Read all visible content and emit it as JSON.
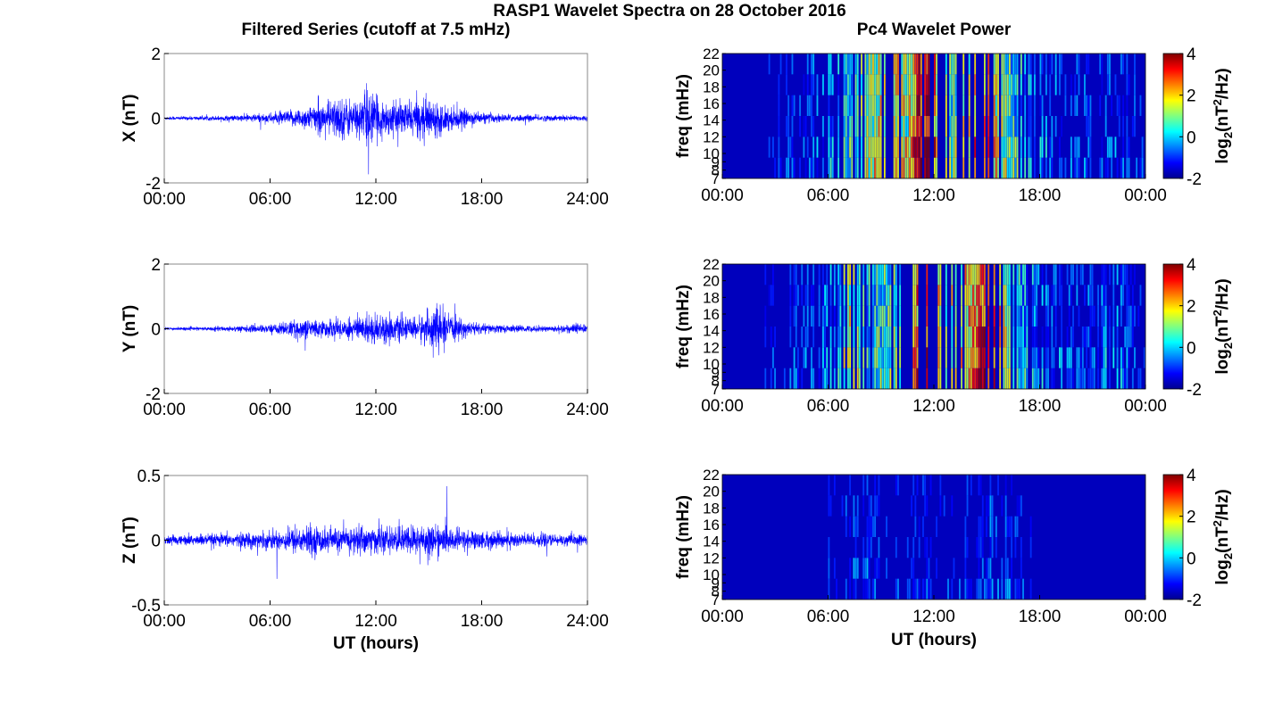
{
  "figure": {
    "title": "RASP1 Wavelet Spectra on 28 October 2016",
    "left_title": "Filtered Series (cutoff at 7.5 mHz)",
    "right_title": "Pc4 Wavelet Power",
    "x_label": "UT (hours)"
  },
  "chart_data": [
    {
      "type": "line",
      "panel": "X",
      "ylabel": "X (nT)",
      "xlabel": "",
      "xlim": [
        0,
        24
      ],
      "ylim": [
        -2,
        2
      ],
      "x_ticks": [
        0,
        6,
        12,
        18,
        24
      ],
      "x_tick_labels": [
        "00:00",
        "06:00",
        "12:00",
        "18:00",
        "24:00"
      ],
      "y_ticks": [
        -2,
        0,
        2
      ],
      "y_tick_labels": [
        "-2",
        "0",
        "2"
      ],
      "color": "#0000ff",
      "envelope_x": [
        0,
        2,
        4,
        6,
        7,
        8,
        9,
        10,
        11,
        11.5,
        12,
        13,
        14,
        15,
        16,
        17,
        18,
        20,
        22,
        24
      ],
      "envelope_amp": [
        0.06,
        0.07,
        0.1,
        0.18,
        0.25,
        0.4,
        0.55,
        0.75,
        0.6,
        1.2,
        0.7,
        0.55,
        0.6,
        0.7,
        0.45,
        0.3,
        0.18,
        0.12,
        0.1,
        0.1
      ]
    },
    {
      "type": "line",
      "panel": "Y",
      "ylabel": "Y (nT)",
      "xlabel": "",
      "xlim": [
        0,
        24
      ],
      "ylim": [
        -2,
        2
      ],
      "x_ticks": [
        0,
        6,
        12,
        18,
        24
      ],
      "x_tick_labels": [
        "00:00",
        "06:00",
        "12:00",
        "18:00",
        "24:00"
      ],
      "y_ticks": [
        -2,
        0,
        2
      ],
      "y_tick_labels": [
        "-2",
        "0",
        "2"
      ],
      "color": "#0000ff",
      "envelope_x": [
        0,
        2,
        4,
        6,
        7,
        8,
        9,
        10,
        11,
        12,
        13,
        14,
        15,
        15.5,
        16,
        17,
        18,
        20,
        22,
        23.5,
        24
      ],
      "envelope_amp": [
        0.05,
        0.06,
        0.1,
        0.15,
        0.25,
        0.35,
        0.3,
        0.35,
        0.45,
        0.55,
        0.45,
        0.35,
        0.6,
        0.9,
        0.5,
        0.3,
        0.18,
        0.12,
        0.1,
        0.2,
        0.1
      ]
    },
    {
      "type": "line",
      "panel": "Z",
      "ylabel": "Z (nT)",
      "xlabel": "UT (hours)",
      "xlim": [
        0,
        24
      ],
      "ylim": [
        -0.5,
        0.5
      ],
      "x_ticks": [
        0,
        6,
        12,
        18,
        24
      ],
      "x_tick_labels": [
        "00:00",
        "06:00",
        "12:00",
        "18:00",
        "24:00"
      ],
      "y_ticks": [
        -0.5,
        0,
        0.5
      ],
      "y_tick_labels": [
        "-0.5",
        "0",
        "0.5"
      ],
      "color": "#0000ff",
      "envelope_x": [
        0,
        2,
        4,
        6,
        7,
        8,
        10,
        11,
        12,
        13,
        14,
        15,
        16,
        18,
        20,
        22,
        24
      ],
      "envelope_amp": [
        0.04,
        0.05,
        0.06,
        0.08,
        0.1,
        0.13,
        0.1,
        0.14,
        0.12,
        0.11,
        0.13,
        0.15,
        0.11,
        0.08,
        0.07,
        0.05,
        0.05
      ]
    },
    {
      "type": "heatmap",
      "panel": "X spectrum",
      "ylabel": "freq (mHz)",
      "xlabel": "",
      "xlim": [
        0,
        24
      ],
      "ylim": [
        7,
        22
      ],
      "x_tick_labels": [
        "00:00",
        "06:00",
        "12:00",
        "18:00",
        "00:00"
      ],
      "y_ticks": [
        7,
        8,
        9,
        10,
        12,
        14,
        16,
        18,
        20,
        22
      ],
      "y_tick_labels": [
        "7",
        "8",
        "9",
        "10",
        "12",
        "14",
        "16",
        "18",
        "20",
        "22"
      ],
      "colorbar_label": "log2(nT^2/Hz)",
      "colorbar_range": [
        -2,
        4
      ],
      "colorbar_ticks": [
        "4",
        "2",
        "0",
        "-2"
      ],
      "activity_x": [
        0,
        3,
        5,
        6.5,
        7.5,
        8.5,
        9.5,
        10.5,
        11.2,
        11.7,
        12.3,
        13,
        14,
        14.8,
        15.5,
        16.5,
        18,
        20,
        22,
        24
      ],
      "activity_level": [
        -2,
        -1.8,
        -1.2,
        -0.4,
        0.4,
        1.2,
        2.2,
        1.2,
        3.3,
        3.7,
        1.6,
        0.6,
        1.6,
        2.8,
        1.7,
        0.3,
        -0.6,
        -1.2,
        -1.2,
        -1.6
      ]
    },
    {
      "type": "heatmap",
      "panel": "Y spectrum",
      "ylabel": "freq (mHz)",
      "xlabel": "",
      "xlim": [
        0,
        24
      ],
      "ylim": [
        7,
        22
      ],
      "x_tick_labels": [
        "00:00",
        "06:00",
        "12:00",
        "18:00",
        "00:00"
      ],
      "y_ticks": [
        7,
        8,
        9,
        10,
        12,
        14,
        16,
        18,
        20,
        22
      ],
      "y_tick_labels": [
        "7",
        "8",
        "9",
        "10",
        "12",
        "14",
        "16",
        "18",
        "20",
        "22"
      ],
      "colorbar_label": "log2(nT^2/Hz)",
      "colorbar_range": [
        -2,
        4
      ],
      "colorbar_ticks": [
        "4",
        "2",
        "0",
        "-2"
      ],
      "activity_x": [
        0,
        3,
        5,
        6.5,
        7.3,
        8.2,
        9.5,
        10.5,
        11.3,
        11.8,
        12.4,
        13.2,
        14,
        14.8,
        15.6,
        16.5,
        18,
        20,
        22.5,
        23.2,
        24
      ],
      "activity_level": [
        -2,
        -1.8,
        -1.2,
        -0.3,
        1.4,
        0.2,
        0.6,
        0.6,
        3.2,
        3.4,
        1.2,
        1.4,
        2.0,
        3.0,
        2.6,
        0.2,
        -0.6,
        -1.2,
        -0.6,
        -1.4,
        -1.8
      ]
    },
    {
      "type": "heatmap",
      "panel": "Z spectrum",
      "ylabel": "freq (mHz)",
      "xlabel": "UT (hours)",
      "xlim": [
        0,
        24
      ],
      "ylim": [
        7,
        22
      ],
      "x_tick_labels": [
        "00:00",
        "06:00",
        "12:00",
        "18:00",
        "00:00"
      ],
      "y_ticks": [
        7,
        8,
        9,
        10,
        12,
        14,
        16,
        18,
        20,
        22
      ],
      "y_tick_labels": [
        "7",
        "8",
        "9",
        "10",
        "12",
        "14",
        "16",
        "18",
        "20",
        "22"
      ],
      "colorbar_label": "log2(nT^2/Hz)",
      "colorbar_range": [
        -2,
        4
      ],
      "colorbar_ticks": [
        "4",
        "2",
        "0",
        "-2"
      ],
      "activity_x": [
        0,
        4,
        6.5,
        7.3,
        9.5,
        11.2,
        12.7,
        13,
        15,
        15.1,
        18,
        24
      ],
      "activity_level": [
        -2,
        -2,
        -1.8,
        -1.3,
        -1.6,
        -1.7,
        -1.5,
        -1.7,
        -1.6,
        -1.0,
        -2,
        -2
      ]
    }
  ]
}
